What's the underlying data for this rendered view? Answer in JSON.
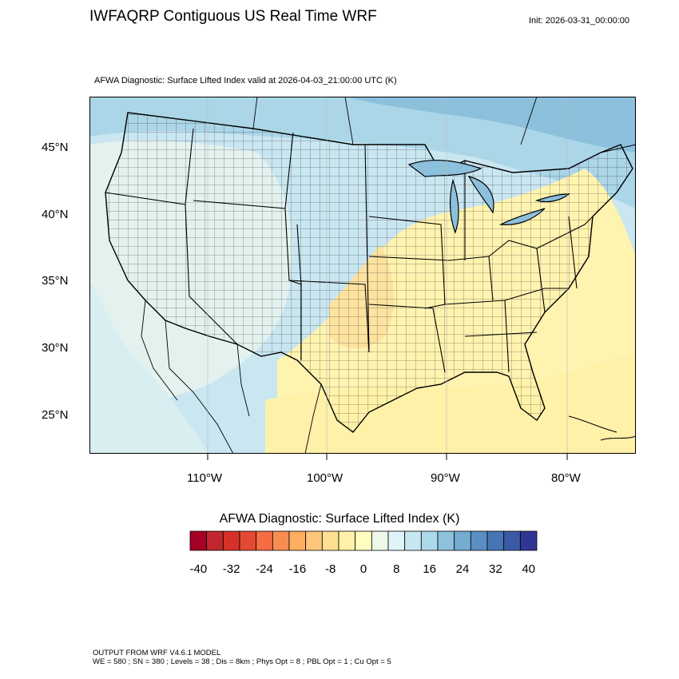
{
  "header": {
    "title": "IWFAQRP Contiguous US Real Time WRF",
    "init": "Init: 2026-03-31_00:00:00"
  },
  "plot": {
    "subtitle": "AFWA Diagnostic: Surface Lifted Index valid at 2026-04-03_21:00:00 UTC   (K)",
    "lat_labels": [
      "45°N",
      "40°N",
      "35°N",
      "30°N",
      "25°N"
    ],
    "lon_labels": [
      "110°W",
      "100°W",
      "90°W",
      "80°W"
    ]
  },
  "colorbar": {
    "title": "AFWA Diagnostic: Surface Lifted Index  (K)",
    "labels": [
      "-40",
      "-32",
      "-24",
      "-16",
      "-8",
      "0",
      "8",
      "16",
      "24",
      "32",
      "40"
    ],
    "colors": [
      "#a50026",
      "#c1272d",
      "#d73027",
      "#e34a33",
      "#f46d43",
      "#f88d52",
      "#fdae61",
      "#fec67a",
      "#fee090",
      "#fff1a8",
      "#ffffbf",
      "#eef8e8",
      "#e0f3f8",
      "#c6e6f0",
      "#abd9e9",
      "#8ec1dc",
      "#74add1",
      "#5b8fc4",
      "#4575b4",
      "#3a5aa6",
      "#313695"
    ]
  },
  "footer": {
    "line1": "OUTPUT FROM WRF V4.6.1 MODEL",
    "line2": "WE = 580 ; SN = 380 ; Levels = 38 ; Dis = 8km ; Phys Opt = 8 ; PBL Opt = 1 ; Cu Opt = 5"
  }
}
